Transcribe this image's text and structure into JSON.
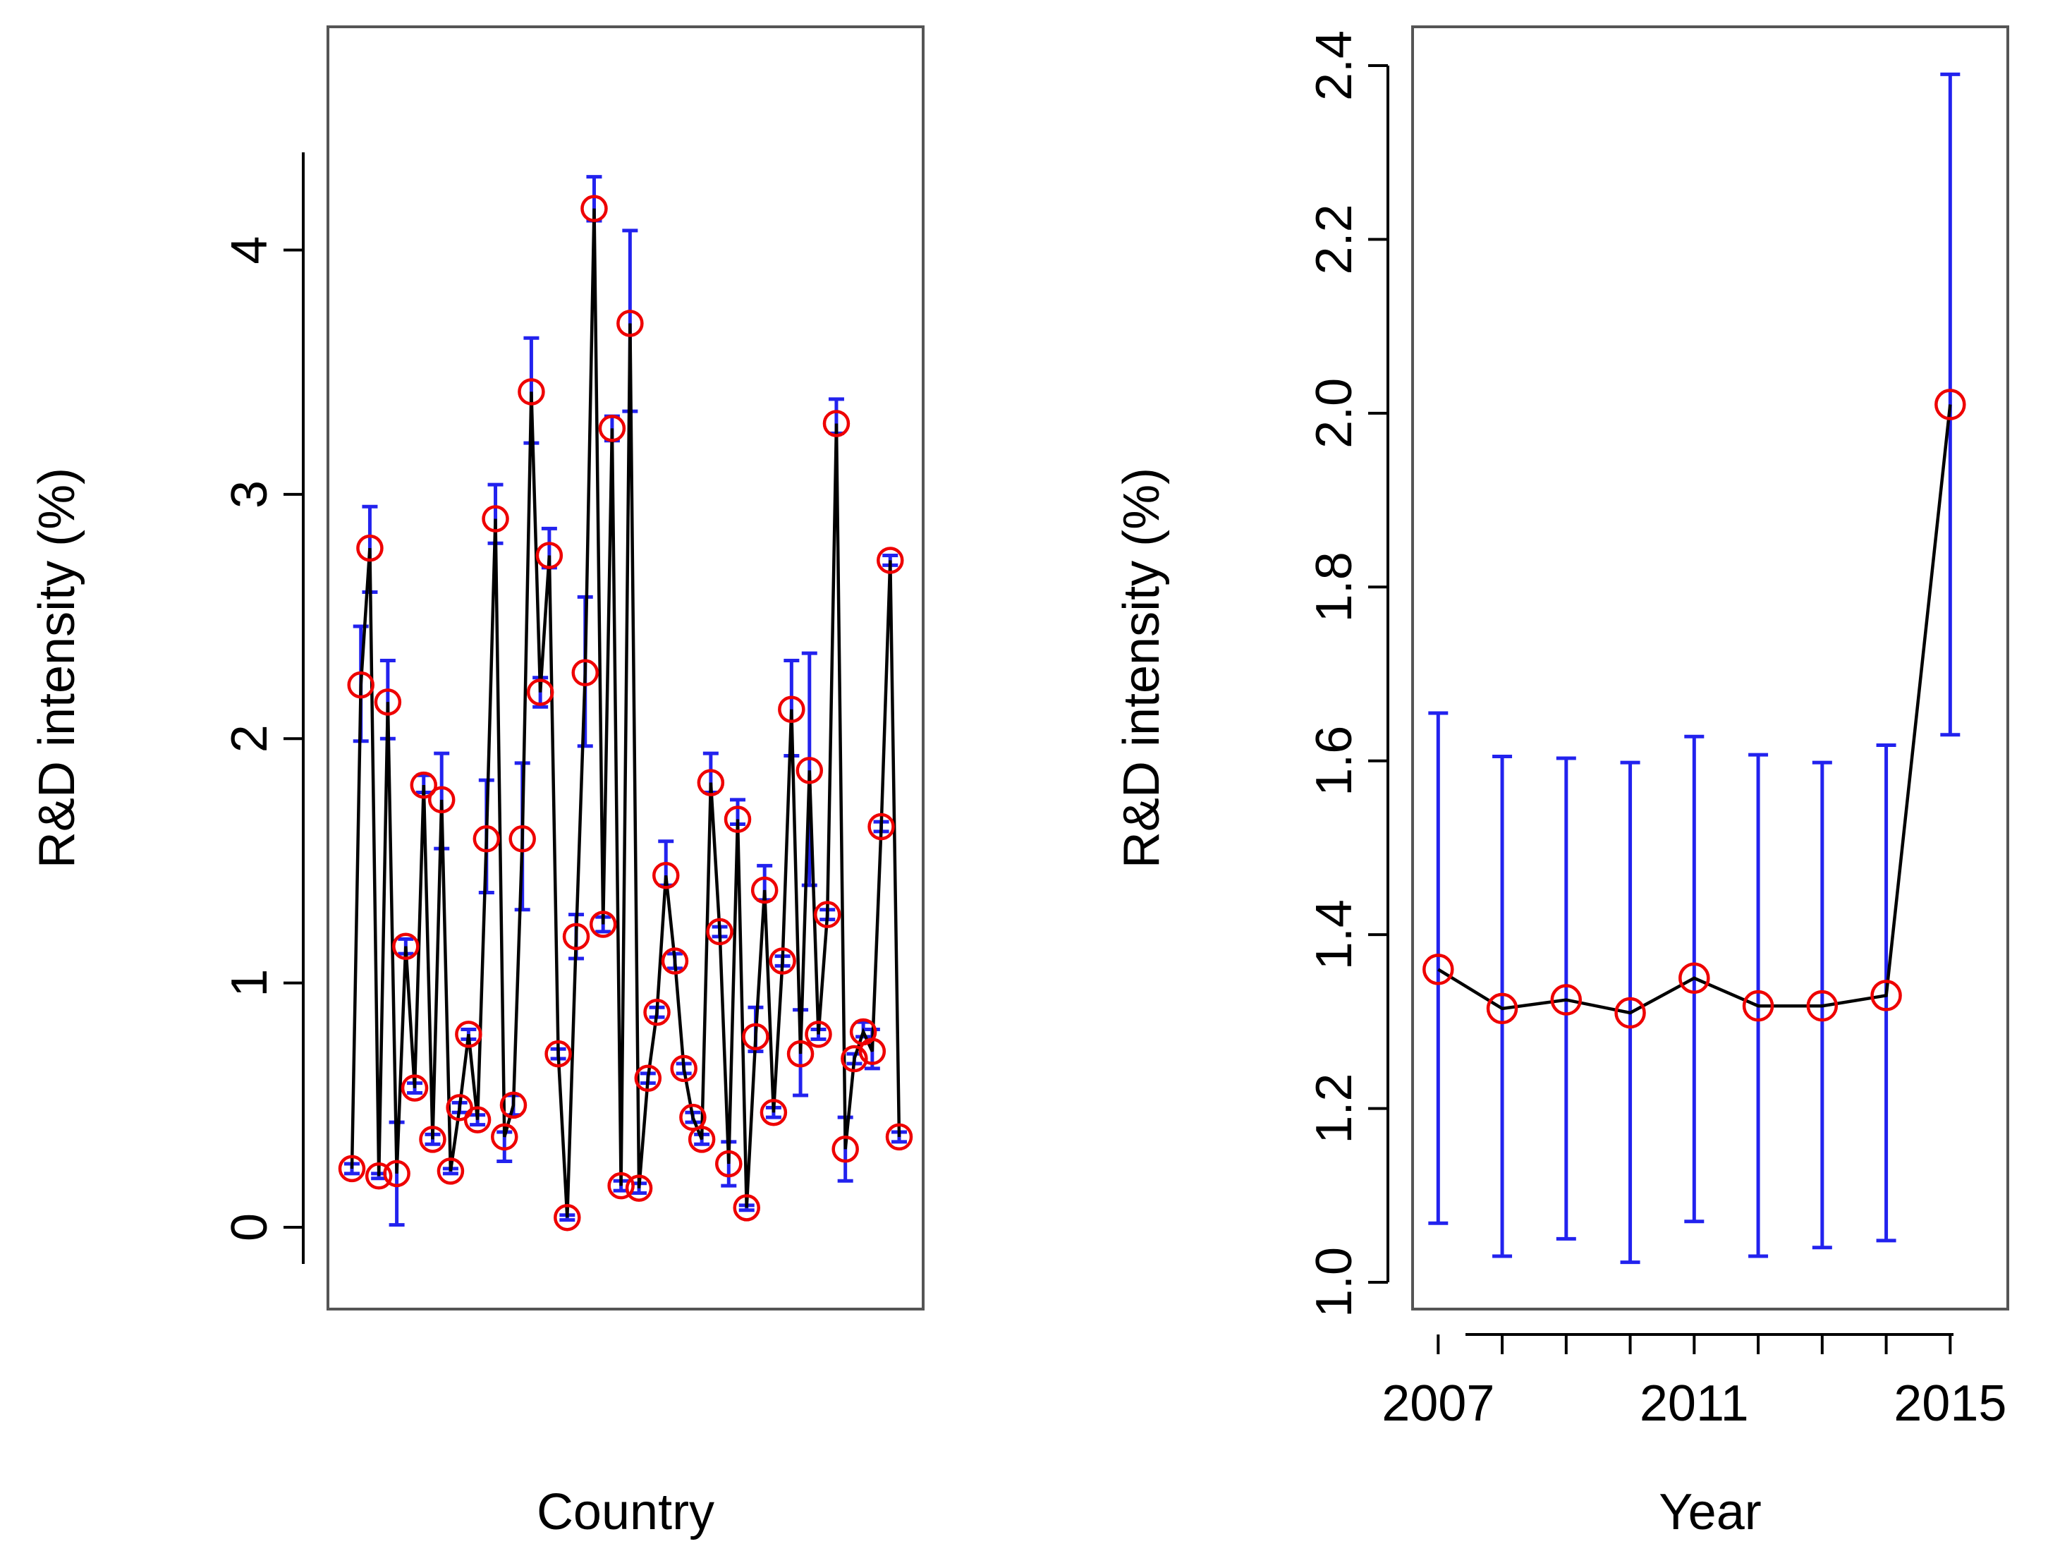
{
  "chart_data": [
    {
      "type": "line",
      "panel": "left",
      "title": "",
      "xlabel": "Country",
      "ylabel": "R&D intensity (%)",
      "ylim": [
        -0.15,
        4.4
      ],
      "yticks": [
        0,
        1,
        2,
        3,
        4
      ],
      "x_tick_labels": [],
      "series": [
        {
          "name": "R&D intensity",
          "marker": "red open circle",
          "error_bar_color": "#2222ee",
          "values": [
            0.24,
            2.22,
            2.78,
            0.21,
            2.15,
            0.22,
            1.15,
            0.57,
            1.81,
            0.36,
            1.75,
            0.23,
            0.49,
            0.79,
            0.44,
            1.59,
            2.9,
            0.37,
            0.5,
            1.59,
            3.42,
            2.19,
            2.75,
            0.71,
            0.04,
            1.19,
            2.27,
            4.17,
            1.24,
            3.27,
            0.17,
            3.7,
            0.16,
            0.61,
            0.88,
            1.44,
            1.09,
            0.65,
            0.45,
            0.36,
            1.82,
            1.21,
            0.26,
            1.67,
            0.08,
            0.78,
            1.38,
            0.47,
            1.09,
            2.12,
            0.71,
            1.87,
            0.79,
            1.28,
            3.29,
            0.32,
            0.69,
            0.8,
            0.72,
            1.64,
            2.73,
            0.37
          ],
          "lower": [
            0.22,
            1.99,
            2.6,
            0.2,
            2.0,
            0.01,
            1.12,
            0.55,
            1.78,
            0.34,
            1.55,
            0.22,
            0.47,
            0.77,
            0.42,
            1.37,
            2.8,
            0.27,
            0.46,
            1.3,
            3.21,
            2.13,
            2.7,
            0.69,
            0.03,
            1.1,
            1.97,
            4.12,
            1.21,
            3.22,
            0.15,
            3.34,
            0.14,
            0.59,
            0.86,
            1.4,
            1.06,
            0.63,
            0.43,
            0.34,
            1.78,
            1.19,
            0.17,
            1.65,
            0.07,
            0.72,
            1.34,
            0.45,
            1.07,
            1.93,
            0.54,
            1.4,
            0.77,
            1.26,
            3.25,
            0.19,
            0.67,
            0.78,
            0.65,
            1.62,
            2.71,
            0.35
          ],
          "upper": [
            0.26,
            2.46,
            2.95,
            0.22,
            2.32,
            0.43,
            1.18,
            0.59,
            1.85,
            0.38,
            1.94,
            0.24,
            0.51,
            0.81,
            0.46,
            1.83,
            3.04,
            0.39,
            0.54,
            1.9,
            3.64,
            2.25,
            2.86,
            0.73,
            0.05,
            1.28,
            2.58,
            4.3,
            1.27,
            3.32,
            0.19,
            4.08,
            0.18,
            0.63,
            0.9,
            1.58,
            1.12,
            0.67,
            0.47,
            0.38,
            1.94,
            1.23,
            0.35,
            1.75,
            0.09,
            0.9,
            1.48,
            0.49,
            1.11,
            2.32,
            0.89,
            2.35,
            0.81,
            1.3,
            3.39,
            0.45,
            0.71,
            0.84,
            0.81,
            1.66,
            2.75,
            0.39
          ]
        }
      ]
    },
    {
      "type": "line",
      "panel": "right",
      "title": "",
      "xlabel": "Year",
      "ylabel": "R&D intensity (%)",
      "ylim": [
        1.0,
        2.4
      ],
      "yticks": [
        "1.0",
        "1.2",
        "1.4",
        "1.6",
        "1.8",
        "2.0",
        "2.2",
        "2.4"
      ],
      "xlim": [
        2006.6,
        2015.9
      ],
      "x": [
        2007,
        2008,
        2009,
        2010,
        2011,
        2012,
        2013,
        2014,
        2015
      ],
      "xticks": [
        2007,
        2008,
        2009,
        2010,
        2011,
        2012,
        2013,
        2014,
        2015
      ],
      "x_tick_labels": [
        "2007",
        "",
        "",
        "",
        "2011",
        "",
        "",
        "",
        "2015"
      ],
      "series": [
        {
          "name": "R&D intensity",
          "marker": "red open circle",
          "error_bar_color": "#2222ee",
          "values": [
            1.36,
            1.315,
            1.325,
            1.31,
            1.35,
            1.318,
            1.318,
            1.33,
            2.01
          ],
          "lower": [
            1.068,
            1.03,
            1.05,
            1.023,
            1.07,
            1.03,
            1.04,
            1.048,
            1.63
          ],
          "upper": [
            1.655,
            1.605,
            1.603,
            1.598,
            1.628,
            1.607,
            1.598,
            1.618,
            2.39
          ]
        }
      ]
    }
  ]
}
